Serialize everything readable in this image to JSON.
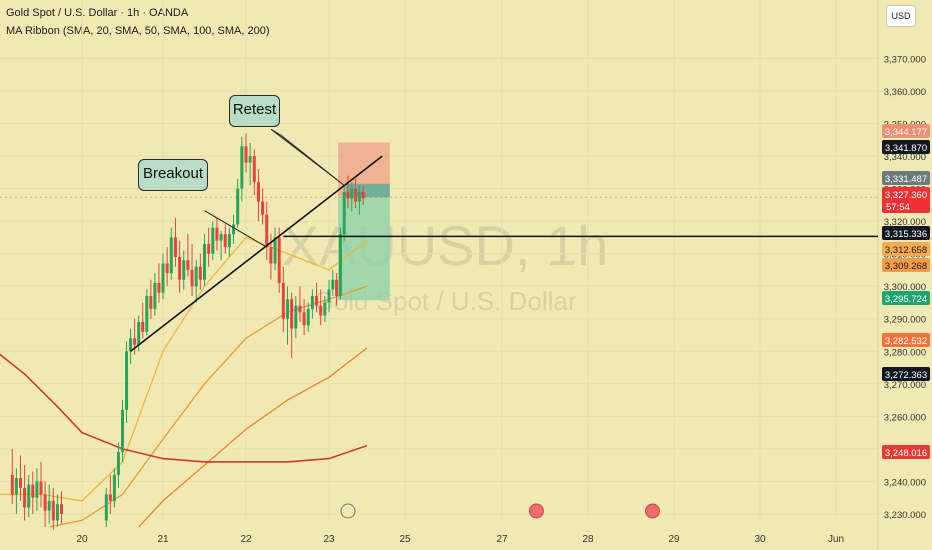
{
  "header": {
    "symbol_line": "Gold Spot / U.S. Dollar · 1h · OANDA",
    "indicator_line": "MA Ribbon (SMA, 20, SMA, 50, SMA, 100, SMA, 200)"
  },
  "currency_button": "USD",
  "watermark": {
    "ticker": "XAUUSD, 1h",
    "name": "Gold Spot / U.S. Dollar"
  },
  "annotations": {
    "retest": "Retest",
    "breakout": "Breakout"
  },
  "price_tags": [
    {
      "label": "3,344.177",
      "color": "#ee8e74",
      "text_color": "#ffffff"
    },
    {
      "label": "3,341.870",
      "color": "#131722",
      "text_color": "#ffffff"
    },
    {
      "label": "3,331.487",
      "color": "#6b7a7c",
      "text_color": "#ffffff"
    },
    {
      "label": "3,327.360",
      "color": "#ee3136",
      "text_color": "#ffffff",
      "sub": "57:54"
    },
    {
      "label": "3,315.336",
      "color": "#131722",
      "text_color": "#ffffff"
    },
    {
      "label": "3,312.658",
      "color": "#f5a950",
      "text_color": "#222222"
    },
    {
      "label": "3,309.268",
      "color": "#f39c45",
      "text_color": "#222222"
    },
    {
      "label": "3,295.724",
      "color": "#1ea574",
      "text_color": "#ffffff"
    },
    {
      "label": "3,282.532",
      "color": "#f2733b",
      "text_color": "#ffffff"
    },
    {
      "label": "3,272.363",
      "color": "#131722",
      "text_color": "#ffffff"
    },
    {
      "label": "3,248.016",
      "color": "#e53935",
      "text_color": "#ffffff"
    }
  ],
  "chart_data": {
    "type": "candlestick",
    "title": "Gold Spot / U.S. Dollar · 1h · OANDA",
    "ylim": [
      3225,
      3380
    ],
    "y_ticks": [
      3230,
      3240,
      3250,
      3260,
      3270,
      3280,
      3290,
      3300,
      3310,
      3320,
      3330,
      3340,
      3350,
      3360,
      3370
    ],
    "y_tick_labels": [
      "3,230.000",
      "3,240.000",
      "3,250.000",
      "3,260.000",
      "3,270.000",
      "3,280.000",
      "3,290.000",
      "3,300.000",
      "3,310.000",
      "3,320.000",
      "3,330.000",
      "3,340.000",
      "3,350.000",
      "3,360.000",
      "3,370.000"
    ],
    "x_ticks": [
      {
        "label": "20",
        "day": 20.0
      },
      {
        "label": "21",
        "day": 21.0
      },
      {
        "label": "22",
        "day": 22.0
      },
      {
        "label": "23",
        "day": 23.0
      },
      {
        "label": "25",
        "day": 24.0
      },
      {
        "label": "27",
        "day": 25.0
      },
      {
        "label": "28",
        "day": 26.0
      },
      {
        "label": "29",
        "day": 27.0
      },
      {
        "label": "30",
        "day": 28.0
      },
      {
        "label": "Jun",
        "day": 29.0
      }
    ],
    "candles": [
      {
        "day": 19.15,
        "o": 3242,
        "h": 3250,
        "l": 3233,
        "c": 3236
      },
      {
        "day": 19.2,
        "o": 3236,
        "h": 3244,
        "l": 3230,
        "c": 3241
      },
      {
        "day": 19.25,
        "o": 3241,
        "h": 3248,
        "l": 3234,
        "c": 3238
      },
      {
        "day": 19.3,
        "o": 3238,
        "h": 3245,
        "l": 3228,
        "c": 3232
      },
      {
        "day": 19.35,
        "o": 3232,
        "h": 3242,
        "l": 3229,
        "c": 3239
      },
      {
        "day": 19.4,
        "o": 3239,
        "h": 3243,
        "l": 3230,
        "c": 3235
      },
      {
        "day": 19.45,
        "o": 3235,
        "h": 3244,
        "l": 3231,
        "c": 3240
      },
      {
        "day": 19.5,
        "o": 3240,
        "h": 3246,
        "l": 3232,
        "c": 3236
      },
      {
        "day": 19.55,
        "o": 3236,
        "h": 3240,
        "l": 3226,
        "c": 3231
      },
      {
        "day": 19.6,
        "o": 3231,
        "h": 3239,
        "l": 3227,
        "c": 3234
      },
      {
        "day": 19.65,
        "o": 3234,
        "h": 3238,
        "l": 3225,
        "c": 3228
      },
      {
        "day": 19.7,
        "o": 3228,
        "h": 3236,
        "l": 3226,
        "c": 3233
      },
      {
        "day": 19.75,
        "o": 3233,
        "h": 3237,
        "l": 3227,
        "c": 3230
      },
      {
        "day": 20.3,
        "o": 3228,
        "h": 3238,
        "l": 3226,
        "c": 3236
      },
      {
        "day": 20.35,
        "o": 3236,
        "h": 3242,
        "l": 3230,
        "c": 3234
      },
      {
        "day": 20.4,
        "o": 3234,
        "h": 3244,
        "l": 3232,
        "c": 3242
      },
      {
        "day": 20.45,
        "o": 3242,
        "h": 3252,
        "l": 3238,
        "c": 3249
      },
      {
        "day": 20.5,
        "o": 3249,
        "h": 3265,
        "l": 3246,
        "c": 3262
      },
      {
        "day": 20.55,
        "o": 3262,
        "h": 3283,
        "l": 3258,
        "c": 3280
      },
      {
        "day": 20.6,
        "o": 3280,
        "h": 3287,
        "l": 3276,
        "c": 3284
      },
      {
        "day": 20.65,
        "o": 3284,
        "h": 3290,
        "l": 3279,
        "c": 3282
      },
      {
        "day": 20.7,
        "o": 3282,
        "h": 3291,
        "l": 3280,
        "c": 3289
      },
      {
        "day": 20.75,
        "o": 3289,
        "h": 3295,
        "l": 3284,
        "c": 3286
      },
      {
        "day": 20.8,
        "o": 3286,
        "h": 3299,
        "l": 3285,
        "c": 3297
      },
      {
        "day": 20.85,
        "o": 3297,
        "h": 3302,
        "l": 3290,
        "c": 3293
      },
      {
        "day": 20.9,
        "o": 3293,
        "h": 3304,
        "l": 3291,
        "c": 3301
      },
      {
        "day": 20.95,
        "o": 3301,
        "h": 3307,
        "l": 3295,
        "c": 3298
      },
      {
        "day": 21.0,
        "o": 3298,
        "h": 3310,
        "l": 3296,
        "c": 3307
      },
      {
        "day": 21.05,
        "o": 3307,
        "h": 3312,
        "l": 3300,
        "c": 3304
      },
      {
        "day": 21.1,
        "o": 3304,
        "h": 3318,
        "l": 3302,
        "c": 3315
      },
      {
        "day": 21.15,
        "o": 3315,
        "h": 3321,
        "l": 3306,
        "c": 3309
      },
      {
        "day": 21.2,
        "o": 3309,
        "h": 3314,
        "l": 3298,
        "c": 3302
      },
      {
        "day": 21.25,
        "o": 3302,
        "h": 3311,
        "l": 3299,
        "c": 3308
      },
      {
        "day": 21.3,
        "o": 3308,
        "h": 3316,
        "l": 3303,
        "c": 3305
      },
      {
        "day": 21.35,
        "o": 3305,
        "h": 3313,
        "l": 3297,
        "c": 3300
      },
      {
        "day": 21.4,
        "o": 3300,
        "h": 3308,
        "l": 3295,
        "c": 3306
      },
      {
        "day": 21.45,
        "o": 3306,
        "h": 3310,
        "l": 3299,
        "c": 3302
      },
      {
        "day": 21.5,
        "o": 3302,
        "h": 3316,
        "l": 3300,
        "c": 3313
      },
      {
        "day": 21.55,
        "o": 3313,
        "h": 3318,
        "l": 3306,
        "c": 3310
      },
      {
        "day": 21.6,
        "o": 3310,
        "h": 3320,
        "l": 3308,
        "c": 3318
      },
      {
        "day": 21.65,
        "o": 3318,
        "h": 3321,
        "l": 3311,
        "c": 3314
      },
      {
        "day": 21.7,
        "o": 3314,
        "h": 3317,
        "l": 3308,
        "c": 3316
      },
      {
        "day": 21.75,
        "o": 3316,
        "h": 3319,
        "l": 3310,
        "c": 3312
      },
      {
        "day": 21.8,
        "o": 3312,
        "h": 3318,
        "l": 3309,
        "c": 3316
      },
      {
        "day": 21.85,
        "o": 3316,
        "h": 3322,
        "l": 3313,
        "c": 3319
      },
      {
        "day": 21.9,
        "o": 3319,
        "h": 3333,
        "l": 3318,
        "c": 3330
      },
      {
        "day": 21.95,
        "o": 3330,
        "h": 3346,
        "l": 3326,
        "c": 3343
      },
      {
        "day": 22.0,
        "o": 3343,
        "h": 3347,
        "l": 3335,
        "c": 3338
      },
      {
        "day": 22.05,
        "o": 3338,
        "h": 3344,
        "l": 3331,
        "c": 3340
      },
      {
        "day": 22.1,
        "o": 3340,
        "h": 3342,
        "l": 3328,
        "c": 3332
      },
      {
        "day": 22.15,
        "o": 3332,
        "h": 3336,
        "l": 3320,
        "c": 3326
      },
      {
        "day": 22.2,
        "o": 3326,
        "h": 3330,
        "l": 3319,
        "c": 3322
      },
      {
        "day": 22.25,
        "o": 3322,
        "h": 3326,
        "l": 3308,
        "c": 3312
      },
      {
        "day": 22.3,
        "o": 3312,
        "h": 3316,
        "l": 3302,
        "c": 3307
      },
      {
        "day": 22.35,
        "o": 3307,
        "h": 3318,
        "l": 3305,
        "c": 3315
      },
      {
        "day": 22.4,
        "o": 3315,
        "h": 3318,
        "l": 3298,
        "c": 3301
      },
      {
        "day": 22.45,
        "o": 3301,
        "h": 3306,
        "l": 3286,
        "c": 3290
      },
      {
        "day": 22.5,
        "o": 3290,
        "h": 3300,
        "l": 3282,
        "c": 3296
      },
      {
        "day": 22.55,
        "o": 3296,
        "h": 3298,
        "l": 3278,
        "c": 3287
      },
      {
        "day": 22.6,
        "o": 3287,
        "h": 3297,
        "l": 3284,
        "c": 3294
      },
      {
        "day": 22.65,
        "o": 3294,
        "h": 3300,
        "l": 3289,
        "c": 3292
      },
      {
        "day": 22.7,
        "o": 3292,
        "h": 3296,
        "l": 3285,
        "c": 3288
      },
      {
        "day": 22.75,
        "o": 3288,
        "h": 3295,
        "l": 3286,
        "c": 3293
      },
      {
        "day": 22.8,
        "o": 3293,
        "h": 3299,
        "l": 3290,
        "c": 3297
      },
      {
        "day": 22.85,
        "o": 3297,
        "h": 3301,
        "l": 3292,
        "c": 3294
      },
      {
        "day": 22.9,
        "o": 3294,
        "h": 3299,
        "l": 3288,
        "c": 3291
      },
      {
        "day": 22.95,
        "o": 3291,
        "h": 3297,
        "l": 3289,
        "c": 3295
      },
      {
        "day": 23.0,
        "o": 3295,
        "h": 3302,
        "l": 3292,
        "c": 3299
      },
      {
        "day": 23.05,
        "o": 3299,
        "h": 3305,
        "l": 3297,
        "c": 3302
      },
      {
        "day": 23.1,
        "o": 3302,
        "h": 3304,
        "l": 3294,
        "c": 3297
      },
      {
        "day": 23.15,
        "o": 3297,
        "h": 3318,
        "l": 3296,
        "c": 3316
      },
      {
        "day": 23.2,
        "o": 3316,
        "h": 3331,
        "l": 3314,
        "c": 3329
      },
      {
        "day": 23.25,
        "o": 3329,
        "h": 3334,
        "l": 3324,
        "c": 3327
      },
      {
        "day": 23.3,
        "o": 3327,
        "h": 3332,
        "l": 3323,
        "c": 3330
      },
      {
        "day": 23.35,
        "o": 3330,
        "h": 3333,
        "l": 3324,
        "c": 3326
      },
      {
        "day": 23.4,
        "o": 3326,
        "h": 3331,
        "l": 3322,
        "c": 3329
      },
      {
        "day": 23.45,
        "o": 3329,
        "h": 3331,
        "l": 3325,
        "c": 3327
      }
    ],
    "moving_averages": [
      {
        "period": 20,
        "color": "#f0b53a",
        "points": [
          [
            19.0,
            3236
          ],
          [
            19.5,
            3236
          ],
          [
            20.0,
            3234
          ],
          [
            20.5,
            3246
          ],
          [
            21.0,
            3280
          ],
          [
            21.5,
            3300
          ],
          [
            22.0,
            3315
          ],
          [
            22.5,
            3310
          ],
          [
            23.0,
            3305
          ],
          [
            23.5,
            3314
          ]
        ]
      },
      {
        "period": 50,
        "color": "#e89a3a",
        "points": [
          [
            19.6,
            3226
          ],
          [
            20.0,
            3228
          ],
          [
            20.5,
            3236
          ],
          [
            21.0,
            3253
          ],
          [
            21.5,
            3270
          ],
          [
            22.0,
            3284
          ],
          [
            22.5,
            3292
          ],
          [
            23.0,
            3296
          ],
          [
            23.5,
            3300
          ]
        ]
      },
      {
        "period": 100,
        "color": "#f07f35",
        "points": [
          [
            20.7,
            3226
          ],
          [
            21.0,
            3234
          ],
          [
            21.5,
            3245
          ],
          [
            22.0,
            3256
          ],
          [
            22.5,
            3265
          ],
          [
            23.0,
            3272
          ],
          [
            23.5,
            3281
          ]
        ]
      },
      {
        "period": 200,
        "color": "#cf3a2b",
        "points": [
          [
            18.95,
            3280
          ],
          [
            19.3,
            3273
          ],
          [
            19.7,
            3263
          ],
          [
            20.0,
            3255
          ],
          [
            20.5,
            3250
          ],
          [
            21.0,
            3247
          ],
          [
            21.5,
            3246
          ],
          [
            22.0,
            3246
          ],
          [
            22.5,
            3246
          ],
          [
            23.0,
            3247
          ],
          [
            23.5,
            3251
          ]
        ]
      }
    ],
    "position": {
      "start_day": 23.12,
      "end_day": 23.8,
      "entry": 3327.5,
      "stop": 3344.177,
      "target": 3295.724
    },
    "trendline": [
      [
        20.6,
        3280
      ],
      [
        23.7,
        3340
      ]
    ],
    "horizontal_level": 3315.336,
    "callout_pointers": [
      {
        "name": "retest",
        "from": [
          22.35,
          3347
        ],
        "to": [
          23.2,
          3331
        ]
      },
      {
        "name": "breakout",
        "from": [
          21.55,
          3322
        ],
        "to": [
          22.25,
          3312
        ]
      }
    ],
    "event_markers": [
      23.25,
      25.4,
      26.75
    ],
    "last_price_dashed": 3327.36
  }
}
